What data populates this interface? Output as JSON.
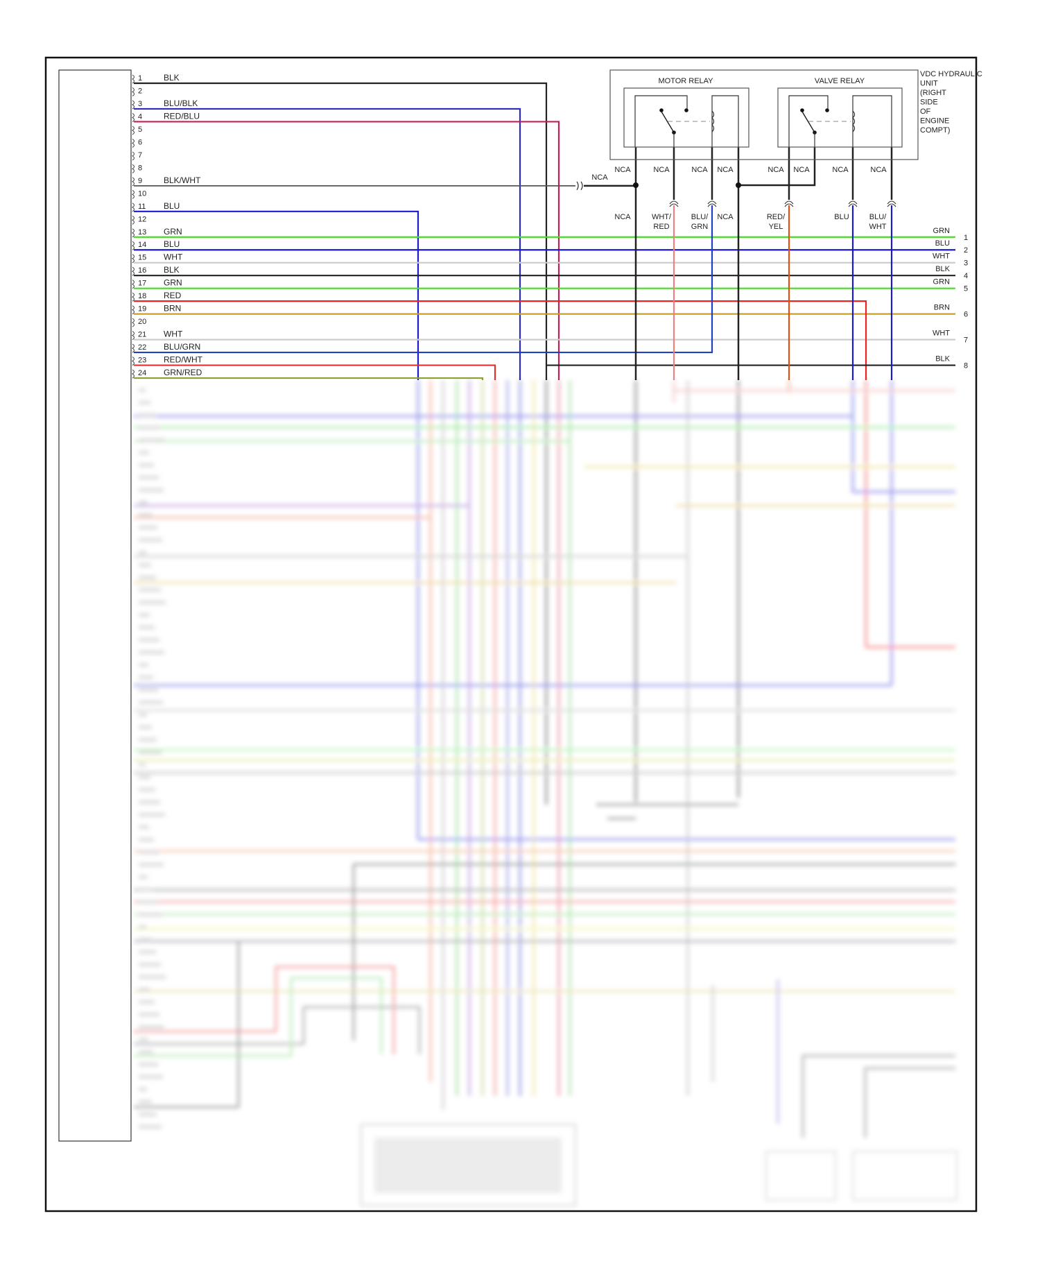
{
  "colors": {
    "BLK": "#222222",
    "BLU/BLK": "#2a2ac0",
    "RED/BLU": "#c0205a",
    "BLK/WHT": "#555555",
    "BLU": "#1a1acc",
    "GRN": "#44dd22",
    "WHT": "#cccccc",
    "RED": "#ee2222",
    "BRN": "#c8a020",
    "BLU/GRN": "#2040c0",
    "RED/WHT": "#e03030",
    "GRN/RED": "#8aa030",
    "WHT/RED": "#f08080",
    "RED/YEL": "#e05010"
  },
  "left_connector": {
    "pins": [
      {
        "num": "1",
        "label": "BLK"
      },
      {
        "num": "2",
        "label": ""
      },
      {
        "num": "3",
        "label": "BLU/BLK"
      },
      {
        "num": "4",
        "label": "RED/BLU"
      },
      {
        "num": "5",
        "label": ""
      },
      {
        "num": "6",
        "label": ""
      },
      {
        "num": "7",
        "label": ""
      },
      {
        "num": "8",
        "label": ""
      },
      {
        "num": "9",
        "label": "BLK/WHT"
      },
      {
        "num": "10",
        "label": ""
      },
      {
        "num": "11",
        "label": "BLU"
      },
      {
        "num": "12",
        "label": ""
      },
      {
        "num": "13",
        "label": "GRN"
      },
      {
        "num": "14",
        "label": "BLU"
      },
      {
        "num": "15",
        "label": "WHT"
      },
      {
        "num": "16",
        "label": "BLK"
      },
      {
        "num": "17",
        "label": "GRN"
      },
      {
        "num": "18",
        "label": "RED"
      },
      {
        "num": "19",
        "label": "BRN"
      },
      {
        "num": "20",
        "label": ""
      },
      {
        "num": "21",
        "label": "WHT"
      },
      {
        "num": "22",
        "label": "BLU/GRN"
      },
      {
        "num": "23",
        "label": "RED/WHT"
      },
      {
        "num": "24",
        "label": "GRN/RED"
      }
    ]
  },
  "right_connector": {
    "pins": [
      {
        "num": "1",
        "label": "GRN"
      },
      {
        "num": "2",
        "label": "BLU"
      },
      {
        "num": "3",
        "label": "WHT"
      },
      {
        "num": "4",
        "label": "BLK"
      },
      {
        "num": "5",
        "label": "GRN"
      },
      {
        "num": "6",
        "label": "BRN"
      },
      {
        "num": "7",
        "label": "WHT"
      },
      {
        "num": "8",
        "label": "BLK"
      }
    ]
  },
  "hydraulic_unit": {
    "title_lines": [
      "VDC HYDRAULIC",
      "UNIT",
      "(RIGHT",
      "SIDE",
      "OF",
      "ENGINE",
      "COMPT)"
    ],
    "motor_relay": "MOTOR RELAY",
    "valve_relay": "VALVE RELAY",
    "upper_labels": [
      "NCA",
      "NCA",
      "NCA",
      "NCA",
      "NCA",
      "NCA",
      "NCA",
      "NCA"
    ],
    "splice_label": "NCA",
    "lower_labels": [
      [
        "NCA"
      ],
      [
        "WHT/",
        "RED"
      ],
      [
        "BLU/",
        "GRN"
      ],
      [
        "NCA"
      ],
      [
        "RED/",
        "YEL"
      ],
      [
        "BLU"
      ],
      [
        "BLU/",
        "WHT"
      ]
    ]
  }
}
